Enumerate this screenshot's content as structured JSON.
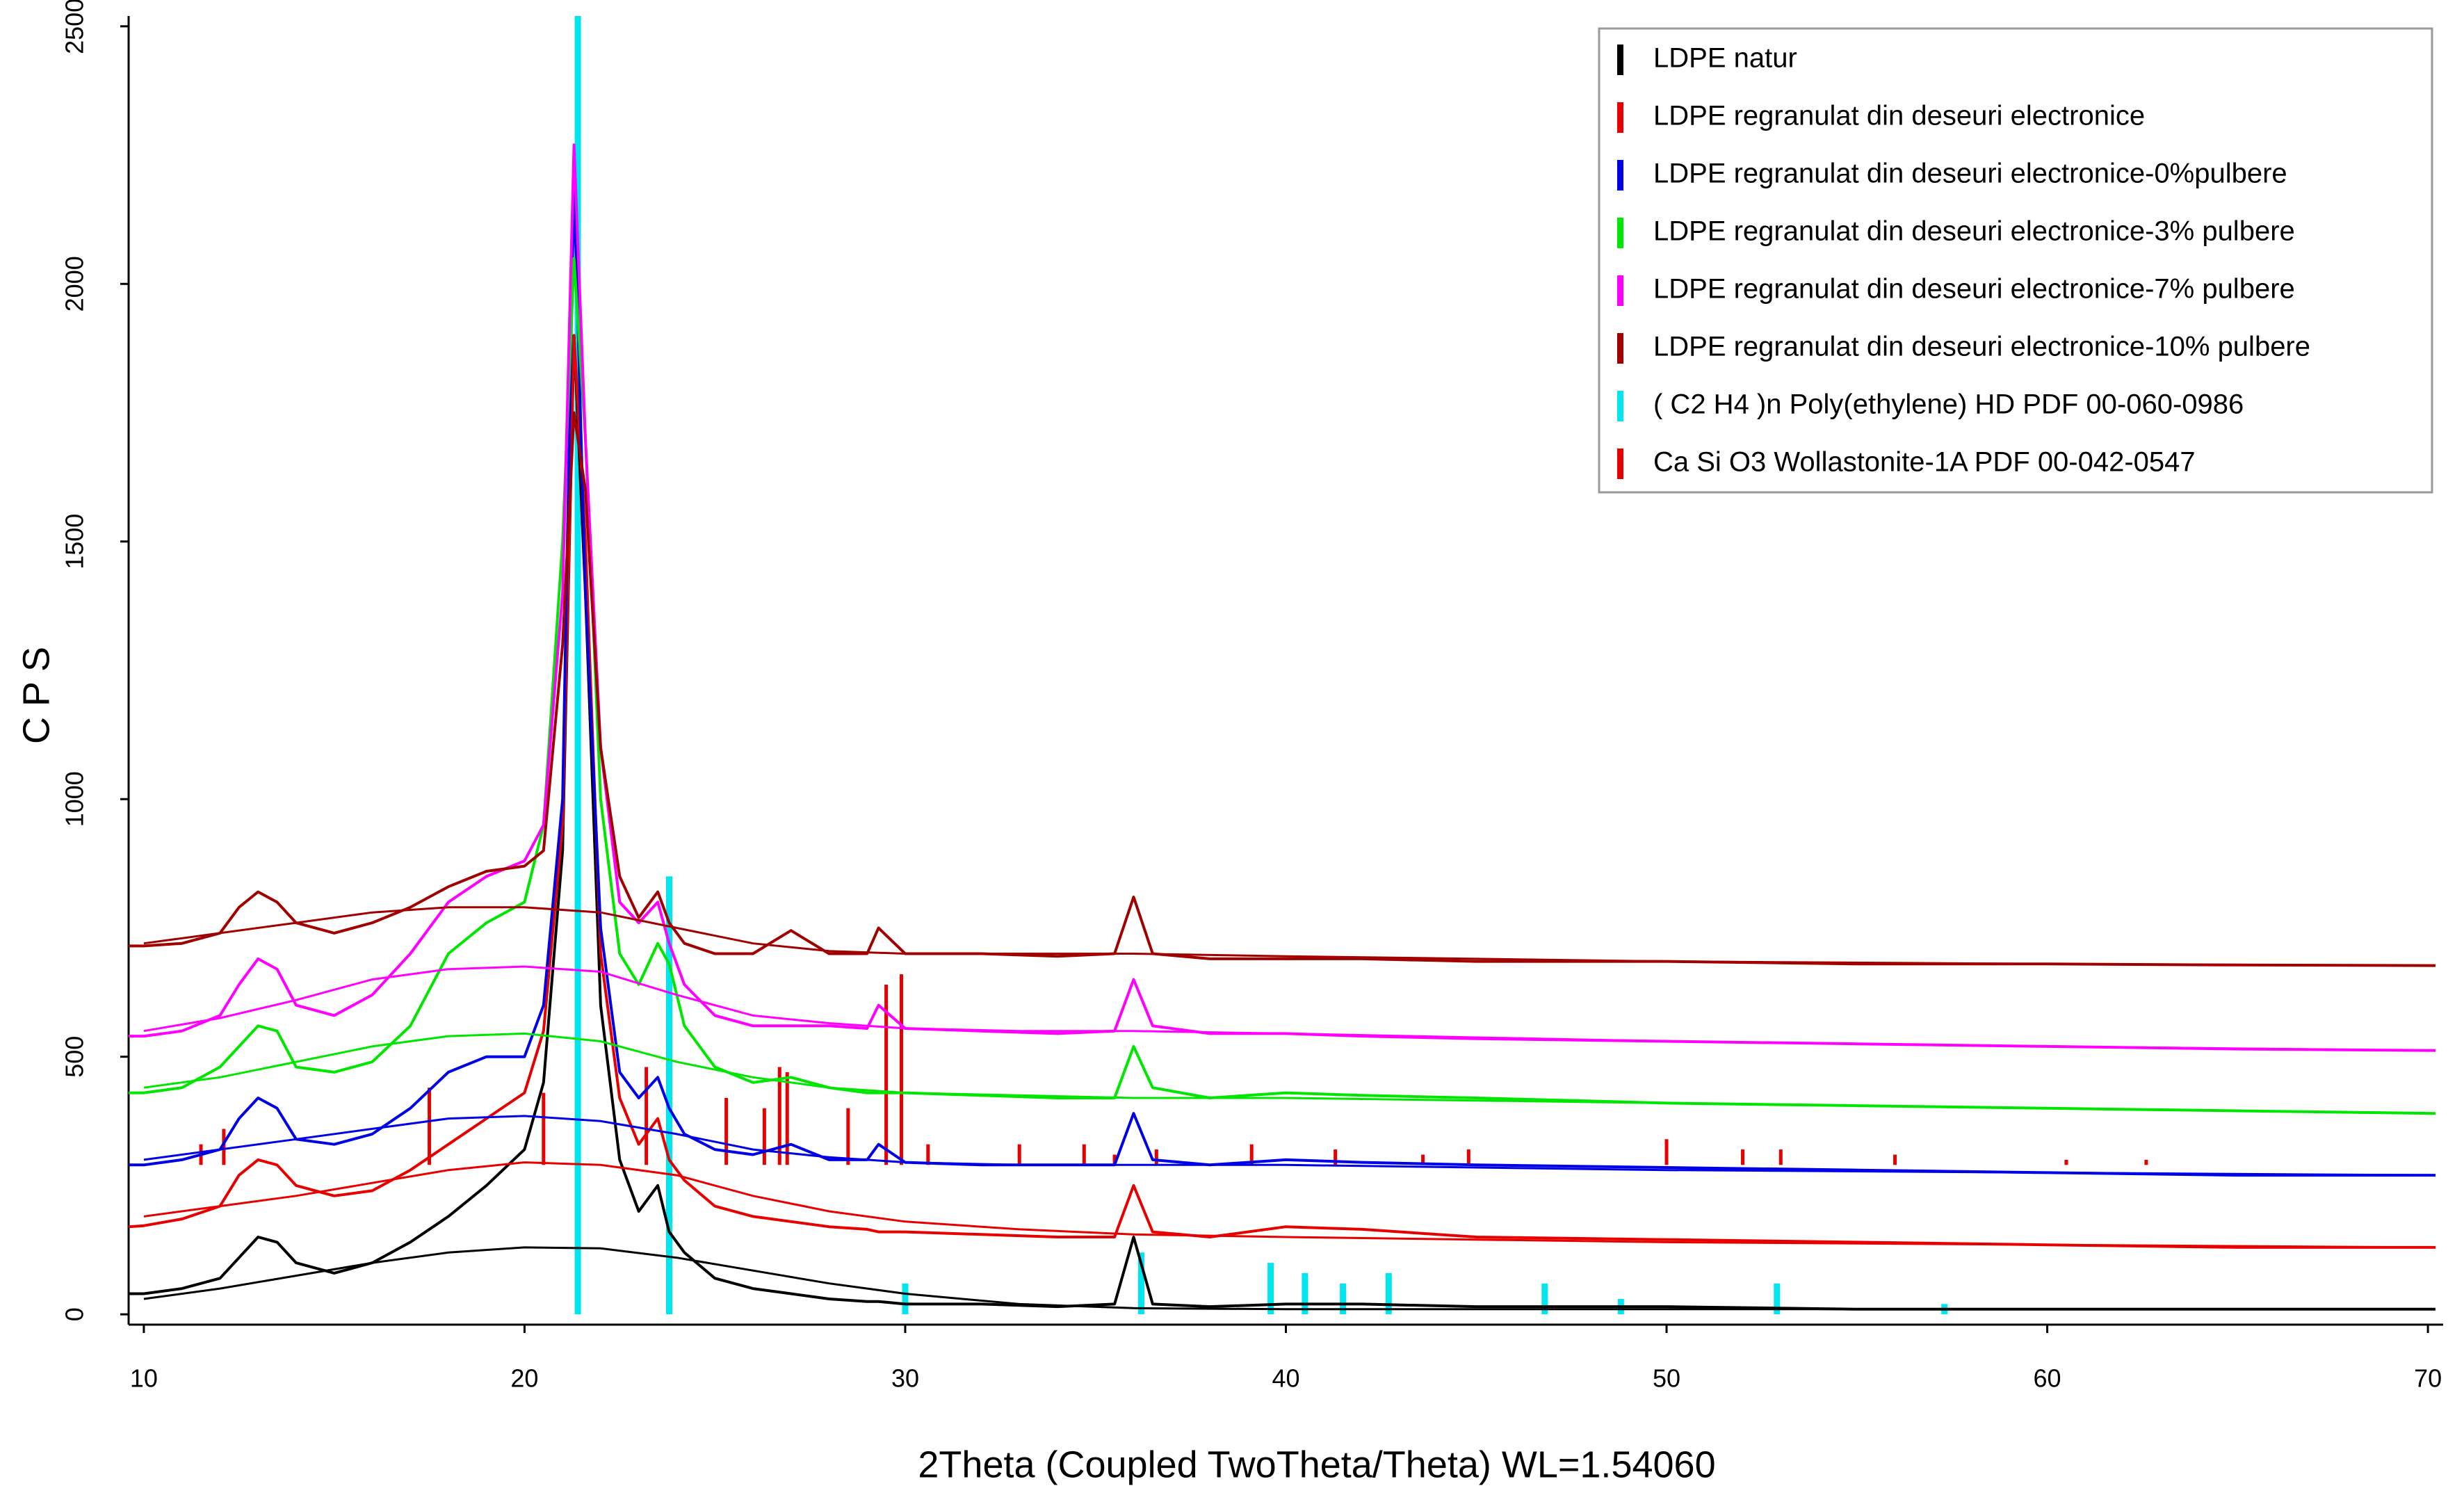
{
  "chart_data": {
    "type": "line",
    "x_label": "2Theta (Coupled TwoTheta/Theta) WL=1.54060",
    "y_label": "C P S",
    "xlim": [
      9.6,
      70.4
    ],
    "ylim": [
      -20,
      2520
    ],
    "xticks": [
      10,
      20,
      30,
      40,
      50,
      60,
      70
    ],
    "yticks": [
      0,
      500,
      1000,
      1500,
      2000,
      2500
    ],
    "legend": "upper right",
    "x": [
      9.6,
      10,
      11,
      12,
      12.5,
      13,
      13.5,
      14,
      15,
      16,
      17,
      18,
      19,
      20,
      20.5,
      21,
      21.3,
      21.6,
      22,
      22.5,
      23,
      23.5,
      23.8,
      24.2,
      25,
      26,
      27,
      28,
      29,
      29.3,
      30,
      32,
      34,
      35.5,
      36,
      36.5,
      38,
      40,
      42,
      45,
      50,
      55,
      60,
      65,
      70.2
    ],
    "background_x": [
      10,
      12,
      14,
      16,
      18,
      20,
      22,
      24,
      26,
      28,
      30,
      33,
      36,
      40,
      50,
      60,
      70
    ],
    "series": [
      {
        "name": "LDPE natur",
        "color": "#000000",
        "values": [
          40,
          40,
          50,
          70,
          110,
          150,
          140,
          100,
          80,
          100,
          140,
          190,
          250,
          320,
          450,
          900,
          1900,
          1400,
          600,
          300,
          200,
          250,
          160,
          120,
          70,
          50,
          40,
          30,
          25,
          25,
          20,
          20,
          15,
          20,
          150,
          20,
          15,
          20,
          20,
          15,
          15,
          10,
          10,
          10,
          10
        ],
        "background": [
          30,
          50,
          75,
          100,
          120,
          130,
          128,
          110,
          85,
          60,
          40,
          20,
          12,
          10,
          10,
          10,
          10
        ]
      },
      {
        "name": "LDPE regranulat din deseuri electronice",
        "color": "#e60000",
        "values": [
          170,
          172,
          185,
          210,
          270,
          300,
          290,
          250,
          230,
          240,
          280,
          330,
          380,
          430,
          550,
          950,
          1900,
          1500,
          700,
          420,
          330,
          380,
          300,
          260,
          210,
          190,
          180,
          170,
          165,
          160,
          160,
          155,
          150,
          150,
          250,
          160,
          150,
          170,
          165,
          150,
          145,
          140,
          135,
          130,
          130
        ],
        "background": [
          190,
          210,
          230,
          255,
          280,
          295,
          290,
          270,
          230,
          200,
          180,
          165,
          155,
          150,
          140,
          135,
          130
        ]
      },
      {
        "name": "LDPE regranulat din deseuri electronice-0%pulbere",
        "color": "#0000e6",
        "values": [
          290,
          290,
          300,
          320,
          380,
          420,
          400,
          340,
          330,
          350,
          400,
          470,
          500,
          500,
          600,
          1000,
          2200,
          1400,
          750,
          470,
          420,
          460,
          400,
          350,
          320,
          310,
          330,
          300,
          300,
          330,
          295,
          290,
          290,
          290,
          390,
          300,
          290,
          300,
          295,
          290,
          285,
          280,
          275,
          270,
          270
        ],
        "background": [
          300,
          320,
          340,
          360,
          380,
          385,
          375,
          350,
          320,
          305,
          295,
          290,
          290,
          290,
          280,
          275,
          270
        ]
      },
      {
        "name": "LDPE regranulat din deseuri electronice-3% pulbere",
        "color": "#00e600",
        "values": [
          430,
          430,
          440,
          480,
          520,
          560,
          550,
          480,
          470,
          490,
          560,
          700,
          760,
          800,
          950,
          1500,
          2050,
          1700,
          1000,
          700,
          640,
          720,
          680,
          560,
          480,
          450,
          460,
          440,
          430,
          430,
          430,
          425,
          420,
          420,
          520,
          440,
          420,
          430,
          425,
          420,
          410,
          405,
          400,
          395,
          390
        ],
        "background": [
          440,
          460,
          490,
          520,
          540,
          545,
          530,
          490,
          460,
          440,
          430,
          425,
          420,
          420,
          410,
          400,
          390
        ]
      },
      {
        "name": "LDPE regranulat din deseuri electronice-7% pulbere",
        "color": "#ff00ff",
        "values": [
          540,
          540,
          550,
          580,
          640,
          690,
          670,
          600,
          580,
          620,
          700,
          800,
          850,
          880,
          950,
          1400,
          2270,
          1700,
          1100,
          800,
          760,
          800,
          720,
          640,
          580,
          560,
          560,
          560,
          555,
          600,
          555,
          550,
          545,
          550,
          650,
          560,
          545,
          545,
          540,
          535,
          530,
          525,
          520,
          515,
          512
        ],
        "background": [
          550,
          575,
          610,
          650,
          670,
          675,
          665,
          620,
          580,
          565,
          555,
          550,
          550,
          545,
          530,
          520,
          512
        ]
      },
      {
        "name": "LDPE regranulat din deseuri electronice-10% pulbere",
        "color": "#a00000",
        "values": [
          715,
          715,
          720,
          740,
          790,
          820,
          800,
          760,
          740,
          760,
          790,
          830,
          860,
          870,
          900,
          1300,
          1750,
          1600,
          1100,
          850,
          770,
          820,
          760,
          720,
          700,
          700,
          745,
          700,
          700,
          750,
          700,
          700,
          695,
          700,
          810,
          700,
          690,
          690,
          690,
          685,
          685,
          680,
          680,
          678,
          677
        ],
        "background": [
          720,
          740,
          760,
          780,
          790,
          790,
          780,
          750,
          720,
          705,
          700,
          700,
          700,
          695,
          685,
          680,
          677
        ]
      }
    ],
    "reference_patterns": [
      {
        "name": "( C2 H4 )n Poly(ethylene) HD PDF 00-060-0986",
        "color": "#00e5ee",
        "baseline": 0,
        "x": [
          21.4,
          23.8,
          30.0,
          36.2,
          39.6,
          40.5,
          41.5,
          42.7,
          46.8,
          48.8,
          52.9,
          57.3
        ],
        "values": [
          2520,
          850,
          60,
          120,
          100,
          80,
          60,
          80,
          60,
          30,
          60,
          20
        ]
      },
      {
        "name": "Ca Si O3 Wollastonite-1A PDF 00-042-0547",
        "color": "#e60000",
        "baseline": 290,
        "x": [
          11.5,
          12.1,
          17.5,
          20.5,
          23.2,
          25.3,
          26.3,
          26.7,
          26.9,
          28.5,
          29.5,
          29.9,
          30.6,
          33.0,
          34.7,
          35.5,
          36.6,
          39.1,
          41.3,
          43.6,
          44.8,
          50.0,
          52.0,
          53.0,
          56.0,
          60.5,
          62.6
        ],
        "values": [
          40,
          70,
          150,
          140,
          190,
          130,
          110,
          190,
          180,
          110,
          350,
          370,
          40,
          40,
          40,
          20,
          30,
          40,
          30,
          20,
          30,
          50,
          30,
          30,
          20,
          10,
          10
        ]
      }
    ]
  }
}
